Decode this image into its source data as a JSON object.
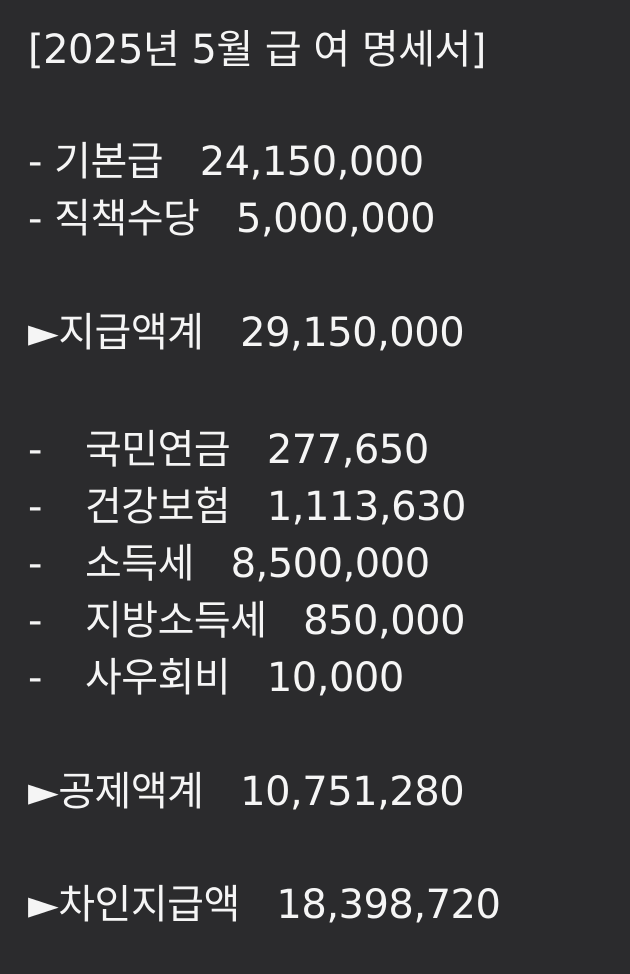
{
  "title": "[2025년 5월 급 여 명세서]",
  "earnings": [
    {
      "label": "- 기본급",
      "amount": "24,150,000"
    },
    {
      "label": "- 직책수당",
      "amount": "5,000,000"
    }
  ],
  "gross_total": {
    "label": "►지급액계",
    "amount": "29,150,000"
  },
  "deductions": [
    {
      "label": "국민연금",
      "amount": "277,650"
    },
    {
      "label": "건강보험",
      "amount": "1,113,630"
    },
    {
      "label": "소득세",
      "amount": "8,500,000"
    },
    {
      "label": "지방소득세",
      "amount": "850,000"
    },
    {
      "label": "사우회비",
      "amount": "10,000"
    }
  ],
  "deduction_dash": "-",
  "deduction_total": {
    "label": "►공제액계",
    "amount": "10,751,280"
  },
  "net_pay": {
    "label": "►차인지급액",
    "amount": "18,398,720"
  }
}
